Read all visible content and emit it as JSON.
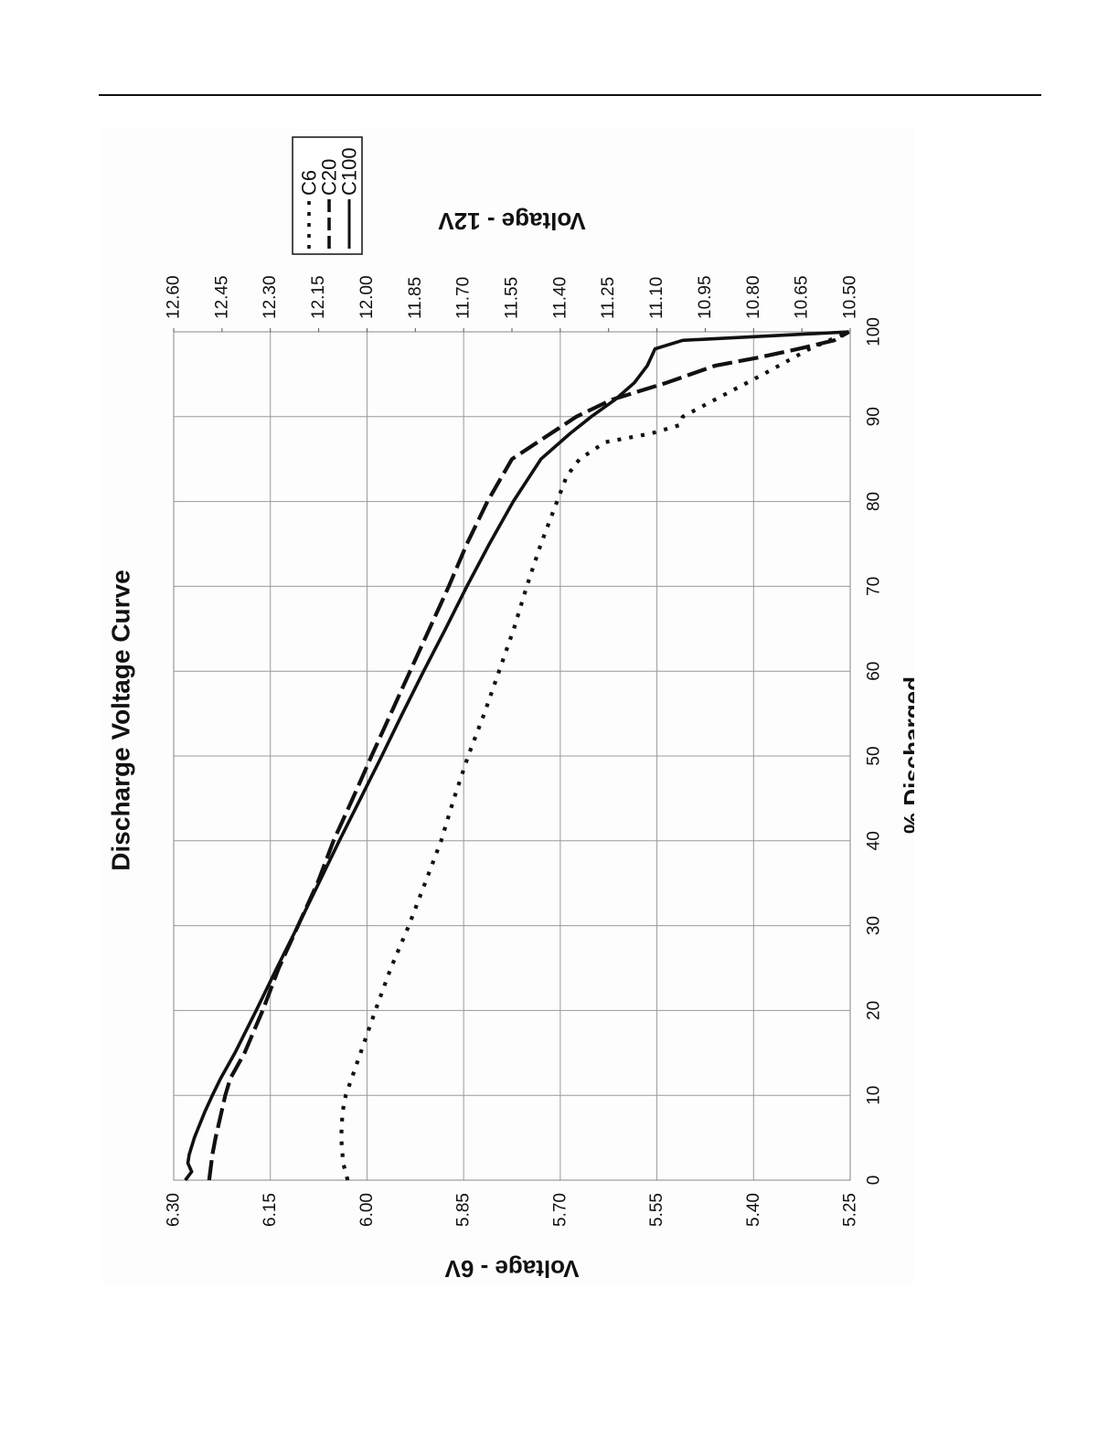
{
  "chart_data": {
    "type": "line",
    "title": "Discharge Voltage Curve",
    "xlabel": "% Discharged",
    "ylabel": "Voltage - 6V",
    "y2label": "Voltage - 12V",
    "xlim": [
      0,
      100
    ],
    "ylim": [
      5.25,
      6.3
    ],
    "y2lim": [
      10.5,
      12.6
    ],
    "x_ticks": [
      "0",
      "10",
      "20",
      "30",
      "40",
      "50",
      "60",
      "70",
      "80",
      "90",
      "100"
    ],
    "y_ticks": [
      "5.25",
      "5.40",
      "5.55",
      "5.70",
      "5.85",
      "6.00",
      "6.15",
      "6.30"
    ],
    "y2_ticks": [
      "10.50",
      "10.65",
      "10.80",
      "10.95",
      "11.10",
      "11.25",
      "11.40",
      "11.55",
      "11.70",
      "11.85",
      "12.00",
      "12.15",
      "12.30",
      "12.45",
      "12.60"
    ],
    "grid": true,
    "legend": "top-right",
    "orientation": "rotated 90 degrees counter-clockwise",
    "series": [
      {
        "name": "C6",
        "style": "dotted",
        "color": "#111111",
        "x": [
          0,
          2,
          5,
          8,
          10,
          15,
          20,
          25,
          30,
          35,
          40,
          45,
          50,
          55,
          60,
          65,
          70,
          75,
          80,
          83,
          85,
          87,
          88,
          89,
          90,
          92,
          95,
          98,
          100
        ],
        "y": [
          6.03,
          6.037,
          6.04,
          6.038,
          6.033,
          6.01,
          5.987,
          5.963,
          5.935,
          5.91,
          5.885,
          5.865,
          5.843,
          5.818,
          5.795,
          5.772,
          5.752,
          5.73,
          5.705,
          5.69,
          5.67,
          5.63,
          5.56,
          5.515,
          5.51,
          5.46,
          5.385,
          5.313,
          5.252
        ]
      },
      {
        "name": "C20",
        "style": "dashed",
        "color": "#111111",
        "x": [
          0,
          3,
          5,
          8,
          10,
          12,
          15,
          20,
          25,
          30,
          35,
          40,
          45,
          50,
          55,
          60,
          65,
          70,
          75,
          80,
          85,
          87,
          90,
          92,
          94,
          96,
          97,
          98,
          99,
          100
        ],
        "y": [
          6.245,
          6.24,
          6.235,
          6.226,
          6.22,
          6.212,
          6.19,
          6.162,
          6.137,
          6.107,
          6.077,
          6.052,
          6.022,
          5.993,
          5.963,
          5.933,
          5.903,
          5.873,
          5.845,
          5.813,
          5.775,
          5.735,
          5.675,
          5.62,
          5.535,
          5.46,
          5.39,
          5.33,
          5.275,
          5.252
        ]
      },
      {
        "name": "C100",
        "style": "solid",
        "color": "#111111",
        "x": [
          0,
          1,
          2,
          3,
          5,
          8,
          10,
          12,
          15,
          20,
          25,
          30,
          35,
          40,
          45,
          50,
          55,
          60,
          65,
          70,
          75,
          80,
          85,
          88,
          90,
          92,
          94,
          96,
          98,
          99,
          100
        ],
        "y": [
          6.282,
          6.272,
          6.278,
          6.276,
          6.268,
          6.252,
          6.24,
          6.227,
          6.205,
          6.172,
          6.14,
          6.107,
          6.075,
          6.043,
          6.01,
          5.977,
          5.945,
          5.912,
          5.878,
          5.845,
          5.81,
          5.773,
          5.73,
          5.685,
          5.652,
          5.615,
          5.585,
          5.565,
          5.553,
          5.51,
          5.252
        ]
      }
    ]
  }
}
